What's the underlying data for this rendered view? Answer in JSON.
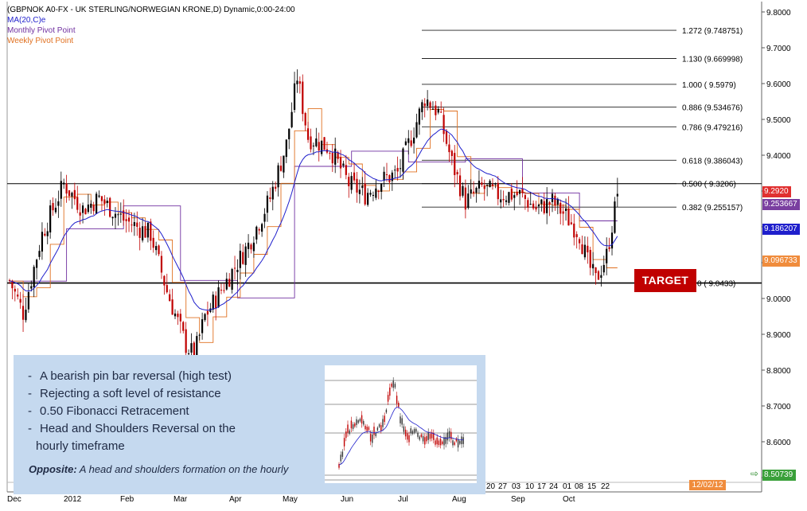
{
  "header": {
    "title": "(GBPNOK A0-FX - UK STERLING/NORWEGIAN KRONE,D) Dynamic,0:00-24:00",
    "ma": "MA(20,C)e",
    "monthly": "Monthly Pivot Point",
    "weekly": "Weekly Pivot Point"
  },
  "target_label": "TARGET",
  "info_box": {
    "bullets": [
      [
        "A bearish pin bar reversal  (high test)"
      ],
      [
        "Rejecting a soft level of resistance"
      ],
      [
        "0.50 Fibonacci Retracement"
      ],
      [
        "Head and Shoulders Reversal on the",
        "hourly timeframe"
      ]
    ],
    "caption_bold": "Opposite:",
    "caption_rest": " A head and shoulders formation on the hourly"
  },
  "price_badges": {
    "last": "9.2920",
    "weekly": "9.253667",
    "ma": "9.186207",
    "monthly": "9.096733",
    "bottom": "8.50739"
  },
  "date_badge": "12/02/12",
  "colors": {
    "up": "#000000",
    "down": "#c00000",
    "ma": "#1f1fcc",
    "monthly": "#7030a0",
    "weekly": "#e07020",
    "target": "#c00000",
    "info_bg": "#c5d9ef"
  },
  "chart_data": {
    "type": "candlestick",
    "yaxis_ticks": [
      "9.8000",
      "9.7000",
      "9.6000",
      "9.5000",
      "9.4000",
      "9.3000",
      "9.2000",
      "9.1000",
      "9.0000",
      "8.9000",
      "8.8000",
      "8.7000",
      "8.6000",
      "8.5000"
    ],
    "ylim": [
      8.47,
      9.8
    ],
    "xaxis_labels": [
      "Dec",
      "2012",
      "Feb",
      "Mar",
      "Apr",
      "May",
      "Jun",
      "Jul",
      "Aug",
      "Sep",
      "Oct"
    ],
    "xaxis_day_labels": [
      "20",
      "27",
      "03",
      "10",
      "17",
      "24",
      "01",
      "08",
      "15",
      "22"
    ],
    "fib_levels": [
      {
        "label": "1.272 (9.748751)",
        "value": 9.748751
      },
      {
        "label": "1.130 (9.669998)",
        "value": 9.669998
      },
      {
        "label": "1.000 ( 9.5979)",
        "value": 9.5979
      },
      {
        "label": "0.886 (9.534676)",
        "value": 9.534676
      },
      {
        "label": "0.786 (9.479216)",
        "value": 9.479216
      },
      {
        "label": "0.618 (9.386043)",
        "value": 9.386043
      },
      {
        "label": "0.500 ( 9.3206)",
        "value": 9.3206
      },
      {
        "label": "0.382 (9.255157)",
        "value": 9.255157
      },
      {
        "label": "0 ( 9.0433)",
        "value": 9.0433
      }
    ],
    "resistance_level": 9.3206,
    "support_level": 9.0433,
    "waypoints": [
      [
        0,
        9.05
      ],
      [
        5,
        8.96
      ],
      [
        12,
        9.18
      ],
      [
        20,
        9.32
      ],
      [
        27,
        9.25
      ],
      [
        33,
        9.28
      ],
      [
        42,
        9.22
      ],
      [
        52,
        9.18
      ],
      [
        58,
        9.02
      ],
      [
        65,
        8.87
      ],
      [
        68,
        8.84
      ],
      [
        72,
        8.95
      ],
      [
        80,
        9.05
      ],
      [
        88,
        9.15
      ],
      [
        96,
        9.28
      ],
      [
        102,
        9.43
      ],
      [
        106,
        9.62
      ],
      [
        110,
        9.45
      ],
      [
        118,
        9.42
      ],
      [
        125,
        9.32
      ],
      [
        131,
        9.29
      ],
      [
        137,
        9.33
      ],
      [
        143,
        9.35
      ],
      [
        148,
        9.45
      ],
      [
        153,
        9.56
      ],
      [
        158,
        9.52
      ],
      [
        163,
        9.38
      ],
      [
        168,
        9.27
      ],
      [
        174,
        9.31
      ],
      [
        180,
        9.29
      ],
      [
        188,
        9.29
      ],
      [
        194,
        9.25
      ],
      [
        200,
        9.27
      ],
      [
        205,
        9.23
      ],
      [
        210,
        9.18
      ],
      [
        213,
        9.1
      ],
      [
        216,
        9.05
      ],
      [
        220,
        9.12
      ],
      [
        224,
        9.29
      ]
    ],
    "last_close": 9.292
  }
}
